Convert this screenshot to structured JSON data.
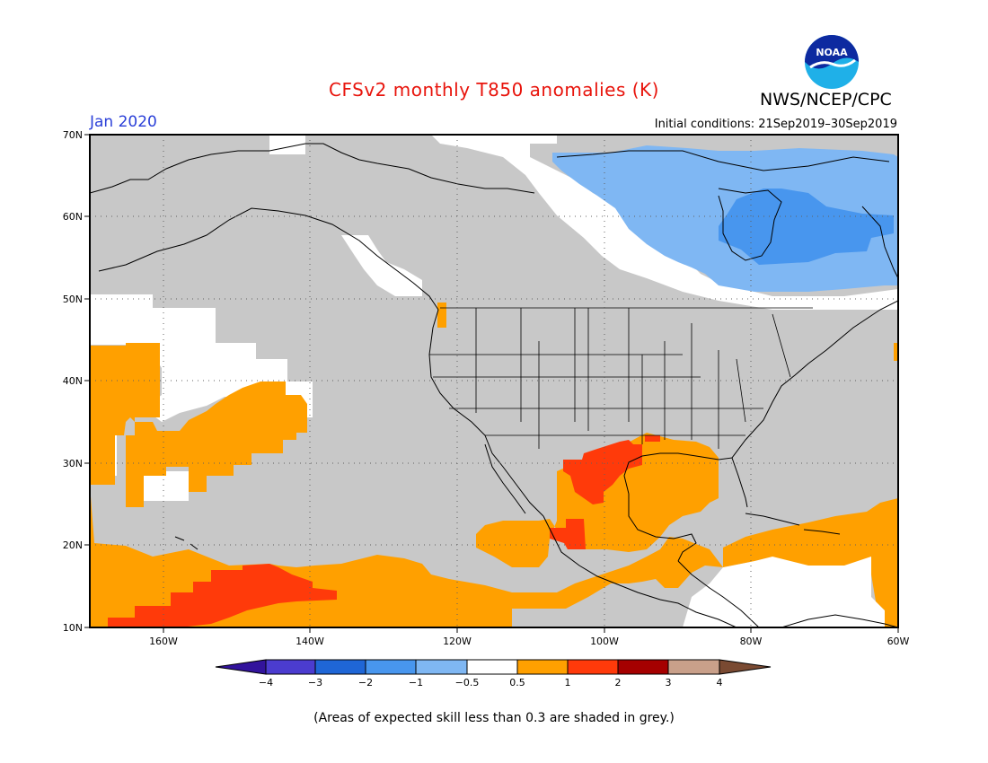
{
  "title": "CFSv2 monthly T850 anomalies (K)",
  "agency": "NWS/NCEP/CPC",
  "logo_text": "NOAA",
  "valid_month": "Jan 2020",
  "initial_conditions": "Initial conditions: 21Sep2019–30Sep2019",
  "footnote": "(Areas of expected skill less than 0.3 are shaded in grey.)",
  "map": {
    "lon_range": [
      -170,
      -60
    ],
    "lat_range": [
      10,
      70
    ],
    "lon_ticks": [
      "160W",
      "140W",
      "120W",
      "100W",
      "80W",
      "60W"
    ],
    "lat_ticks": [
      "70N",
      "60N",
      "50N",
      "40N",
      "30N",
      "20N",
      "10N"
    ],
    "gridlines": "dotted",
    "low_skill_color": "#c8c8c8"
  },
  "colorbar": {
    "boundaries": [
      "−4",
      "−3",
      "−2",
      "−1",
      "−0.5",
      "0.5",
      "1",
      "2",
      "3",
      "4"
    ],
    "colors": [
      "#32139c",
      "#4b3ccf",
      "#1f66d6",
      "#4896ee",
      "#7fb7f3",
      "#ffffff",
      "#ffa000",
      "#ff3a0a",
      "#a50000",
      "#c9a08a",
      "#7a4a32"
    ]
  },
  "anomaly_regions": [
    {
      "name": "eastern-canada-negative",
      "level": "-0.5 to -1",
      "color": "#7fb7f3"
    },
    {
      "name": "hudson-bay-negative",
      "level": "-1 to -2",
      "color": "#4896ee"
    },
    {
      "name": "gulf-mexico-positive",
      "level": "0.5 to 1",
      "color": "#ffa000"
    },
    {
      "name": "texas-mexico-positive",
      "level": "1 to 2",
      "color": "#ff3a0a"
    },
    {
      "name": "subtropical-pacific-positive",
      "level": "0.5 to 1",
      "color": "#ffa000"
    },
    {
      "name": "central-pacific-positive",
      "level": "1 to 2",
      "color": "#ff3a0a"
    },
    {
      "name": "caribbean-positive",
      "level": "0.5 to 1",
      "color": "#ffa000"
    }
  ]
}
